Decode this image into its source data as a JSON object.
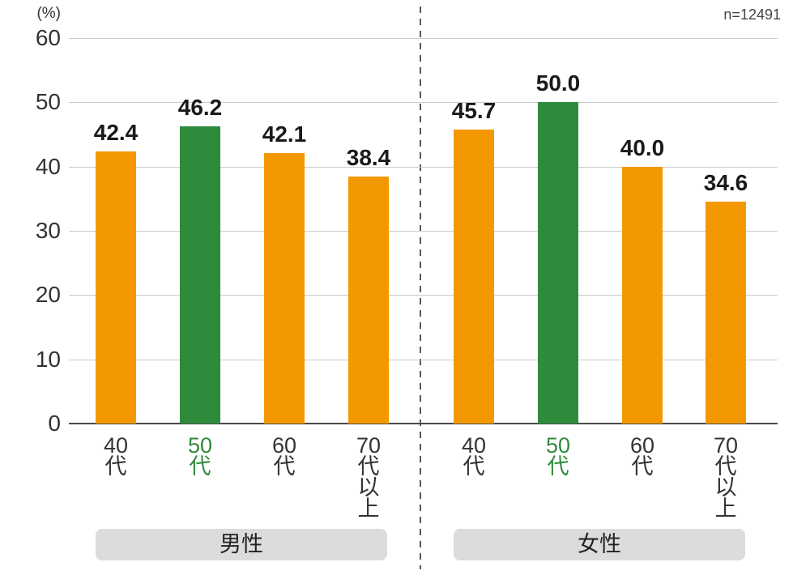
{
  "header": {
    "unit_label": "(%)",
    "sample_size": "n=12491"
  },
  "chart_data": {
    "type": "bar",
    "title": "",
    "ylabel": "(%)",
    "ylim": [
      0,
      60
    ],
    "yticks": [
      0,
      10,
      20,
      30,
      40,
      50,
      60
    ],
    "grid": true,
    "annotation": "n=12491",
    "categories": [
      "40代",
      "50代",
      "60代",
      "70代以上"
    ],
    "highlight_category": "50代",
    "series": [
      {
        "name": "男性",
        "values": [
          42.4,
          46.2,
          42.1,
          38.4
        ],
        "value_labels": [
          "42.4",
          "46.2",
          "42.1",
          "38.4"
        ]
      },
      {
        "name": "女性",
        "values": [
          45.7,
          50.0,
          40.0,
          34.6
        ],
        "value_labels": [
          "45.7",
          "50.0",
          "40.0",
          "34.6"
        ]
      }
    ],
    "legend_position": "none",
    "colors": {
      "bar_default": "#f39800",
      "bar_highlight": "#2f8b3c",
      "highlight_text": "#2f8b3c",
      "grid_line": "#cbcbcb",
      "axis_line": "#4a4a4a",
      "divider": "#595959",
      "group_pill_bg": "#dcdcdc",
      "value_text": "#1a1a1a",
      "tick_text": "#333333",
      "note_text": "#444444"
    }
  }
}
